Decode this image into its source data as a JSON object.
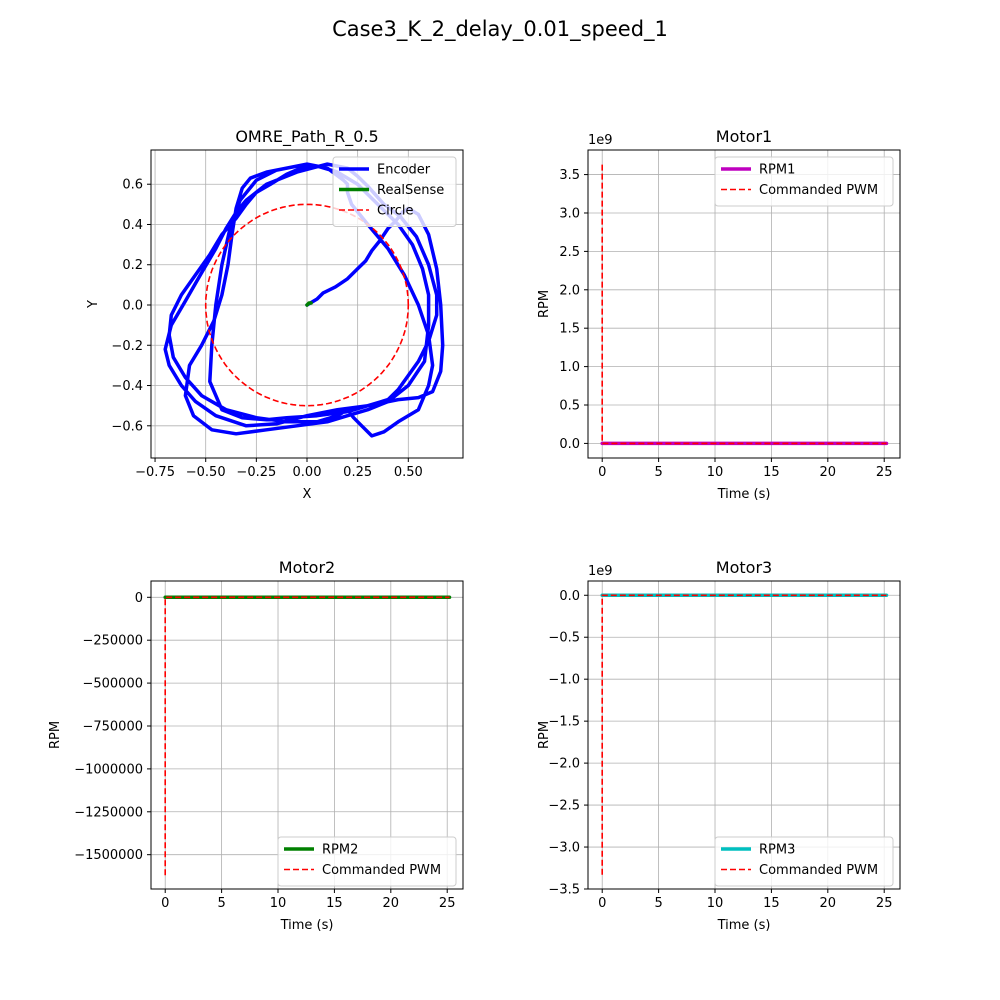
{
  "figure_title": "Case3_K_2_delay_0.01_speed_1",
  "colors": {
    "encoder": "#0000ff",
    "realsense": "#008000",
    "circle": "#ff0000",
    "rpm1": "#bf00bf",
    "rpm2": "#008000",
    "rpm3": "#00bfbf",
    "pwm": "#ff0000"
  },
  "chart_data": [
    {
      "id": "path",
      "type": "line",
      "title": "OMRE_Path_R_0.5",
      "xlabel": "X",
      "ylabel": "Y",
      "xlim": [
        -0.77,
        0.77
      ],
      "ylim": [
        -0.76,
        0.77
      ],
      "xticks": [
        -0.75,
        -0.5,
        -0.25,
        0.0,
        0.25,
        0.5
      ],
      "xticklabels": [
        "−0.75",
        "−0.50",
        "−0.25",
        "0.00",
        "0.25",
        "0.50"
      ],
      "yticks": [
        -0.6,
        -0.4,
        -0.2,
        0.0,
        0.2,
        0.4,
        0.6
      ],
      "yticklabels": [
        "−0.6",
        "−0.4",
        "−0.2",
        "0.0",
        "0.2",
        "0.4",
        "0.6"
      ],
      "grid": true,
      "legend": "top-right",
      "series": [
        {
          "name": "Encoder",
          "style": "solid",
          "color": "#0000ff",
          "x": [
            0.0,
            0.05,
            0.08,
            0.14,
            0.2,
            0.25,
            0.29,
            0.32,
            0.36,
            0.4,
            0.44,
            0.47,
            0.5,
            0.55,
            0.6,
            0.64,
            0.66,
            0.67,
            0.66,
            0.62,
            0.55,
            0.45,
            0.3,
            0.15,
            0.0,
            -0.15,
            -0.3,
            -0.45,
            -0.55,
            -0.62,
            -0.68,
            -0.7,
            -0.67,
            -0.6,
            -0.52,
            -0.45,
            -0.4,
            -0.35,
            -0.3,
            -0.2,
            -0.05,
            0.1,
            0.2,
            0.25,
            0.3,
            0.38,
            0.46,
            0.54,
            0.6,
            0.64,
            0.64,
            0.6,
            0.55,
            0.5,
            0.45,
            0.4,
            0.3,
            0.2,
            0.05,
            -0.1,
            -0.2,
            -0.32,
            -0.42,
            -0.48,
            -0.47,
            -0.45,
            -0.42,
            -0.38,
            -0.33,
            -0.25,
            -0.15,
            0.0,
            0.1,
            0.18,
            0.2,
            0.2,
            0.22,
            0.3,
            0.4,
            0.48,
            0.55,
            0.6,
            0.62,
            0.6,
            0.55,
            0.45,
            0.38,
            0.32,
            0.27,
            0.23,
            0.2,
            0.15,
            0.05,
            -0.1,
            -0.25,
            -0.4,
            -0.52,
            -0.6,
            -0.66,
            -0.68,
            -0.67,
            -0.62,
            -0.55,
            -0.48,
            -0.42,
            -0.35,
            -0.3,
            -0.25,
            -0.18,
            -0.1,
            -0.03,
            0.05,
            0.15,
            0.25,
            0.35,
            0.45,
            0.52,
            0.57,
            0.6,
            0.6,
            0.58,
            0.5,
            0.4,
            0.3,
            0.2,
            0.1,
            -0.05,
            -0.2,
            -0.35,
            -0.47,
            -0.56,
            -0.6,
            -0.58,
            -0.52,
            -0.46,
            -0.42,
            -0.39,
            -0.37,
            -0.35,
            -0.32,
            -0.28,
            -0.2,
            -0.15
          ],
          "y": [
            0.0,
            0.03,
            0.06,
            0.09,
            0.13,
            0.18,
            0.22,
            0.27,
            0.32,
            0.38,
            0.42,
            0.46,
            0.48,
            0.45,
            0.35,
            0.18,
            0.0,
            -0.2,
            -0.33,
            -0.43,
            -0.46,
            -0.47,
            -0.5,
            -0.52,
            -0.55,
            -0.59,
            -0.6,
            -0.55,
            -0.48,
            -0.4,
            -0.3,
            -0.22,
            -0.1,
            0.02,
            0.16,
            0.28,
            0.38,
            0.46,
            0.52,
            0.6,
            0.66,
            0.7,
            0.68,
            0.64,
            0.59,
            0.5,
            0.44,
            0.34,
            0.2,
            0.05,
            -0.05,
            -0.18,
            -0.28,
            -0.35,
            -0.42,
            -0.47,
            -0.5,
            -0.53,
            -0.55,
            -0.56,
            -0.57,
            -0.56,
            -0.52,
            -0.38,
            -0.2,
            0.0,
            0.2,
            0.38,
            0.52,
            0.62,
            0.67,
            0.7,
            0.68,
            0.62,
            0.6,
            0.56,
            0.5,
            0.4,
            0.28,
            0.15,
            0.0,
            -0.15,
            -0.3,
            -0.4,
            -0.52,
            -0.58,
            -0.63,
            -0.65,
            -0.6,
            -0.56,
            -0.52,
            -0.55,
            -0.58,
            -0.58,
            -0.56,
            -0.52,
            -0.45,
            -0.36,
            -0.26,
            -0.15,
            -0.05,
            0.05,
            0.15,
            0.25,
            0.35,
            0.43,
            0.5,
            0.56,
            0.6,
            0.65,
            0.68,
            0.69,
            0.66,
            0.6,
            0.5,
            0.4,
            0.3,
            0.18,
            0.05,
            -0.1,
            -0.28,
            -0.4,
            -0.48,
            -0.52,
            -0.55,
            -0.58,
            -0.6,
            -0.62,
            -0.64,
            -0.62,
            -0.55,
            -0.45,
            -0.3,
            -0.2,
            -0.08,
            0.05,
            0.2,
            0.35,
            0.48,
            0.58,
            0.63,
            0.66,
            0.67
          ]
        },
        {
          "name": "RealSense",
          "style": "solid",
          "color": "#008000",
          "x": [
            0.0,
            0.01,
            0.02
          ],
          "y": [
            0.0,
            0.01,
            0.01
          ]
        },
        {
          "name": "Circle",
          "style": "dashed",
          "color": "#ff0000",
          "parametric": "circle",
          "center": [
            0.0,
            0.0
          ],
          "radius": 0.5
        }
      ]
    },
    {
      "id": "motor1",
      "type": "line",
      "title": "Motor1",
      "xlabel": "Time (s)",
      "ylabel": "RPM",
      "offset_text": "1e9",
      "xlim": [
        -1.26,
        26.4
      ],
      "ylim": [
        -0.19,
        3.82
      ],
      "xticks": [
        0,
        5,
        10,
        15,
        20,
        25
      ],
      "xticklabels": [
        "0",
        "5",
        "10",
        "15",
        "20",
        "25"
      ],
      "yticks": [
        0.0,
        0.5,
        1.0,
        1.5,
        2.0,
        2.5,
        3.0,
        3.5
      ],
      "yticklabels": [
        "0.0",
        "0.5",
        "1.0",
        "1.5",
        "2.0",
        "2.5",
        "3.0",
        "3.5"
      ],
      "grid": true,
      "legend": "top-right",
      "series": [
        {
          "name": "RPM1",
          "style": "solid",
          "color": "#bf00bf",
          "x": [
            0,
            25.2
          ],
          "y": [
            0.0,
            0.0
          ]
        },
        {
          "name": "Commanded PWM",
          "style": "dashed",
          "color": "#ff0000",
          "x": [
            0,
            0,
            0.05,
            25.2
          ],
          "y": [
            3.63,
            0.0,
            0.0,
            0.0
          ]
        }
      ]
    },
    {
      "id": "motor2",
      "type": "line",
      "title": "Motor2",
      "xlabel": "Time (s)",
      "ylabel": "RPM",
      "xlim": [
        -1.26,
        26.4
      ],
      "ylim": [
        -1700000,
        95000
      ],
      "xticks": [
        0,
        5,
        10,
        15,
        20,
        25
      ],
      "xticklabels": [
        "0",
        "5",
        "10",
        "15",
        "20",
        "25"
      ],
      "yticks": [
        0,
        -250000,
        -500000,
        -750000,
        -1000000,
        -1250000,
        -1500000
      ],
      "yticklabels": [
        "0",
        "−250000",
        "−500000",
        "−750000",
        "−1000000",
        "−1250000",
        "−1500000"
      ],
      "grid": true,
      "legend": "bottom-right",
      "series": [
        {
          "name": "RPM2",
          "style": "solid",
          "color": "#008000",
          "x": [
            0,
            25.2
          ],
          "y": [
            0,
            0
          ]
        },
        {
          "name": "Commanded PWM",
          "style": "dashed",
          "color": "#ff0000",
          "x": [
            0,
            0,
            0.05,
            25.2
          ],
          "y": [
            -1620000,
            0,
            0,
            0
          ]
        }
      ]
    },
    {
      "id": "motor3",
      "type": "line",
      "title": "Motor3",
      "xlabel": "Time (s)",
      "ylabel": "RPM",
      "offset_text": "1e9",
      "xlim": [
        -1.26,
        26.4
      ],
      "ylim": [
        -3.5,
        0.17
      ],
      "xticks": [
        0,
        5,
        10,
        15,
        20,
        25
      ],
      "xticklabels": [
        "0",
        "5",
        "10",
        "15",
        "20",
        "25"
      ],
      "yticks": [
        0.0,
        -0.5,
        -1.0,
        -1.5,
        -2.0,
        -2.5,
        -3.0,
        -3.5
      ],
      "yticklabels": [
        "0.0",
        "−0.5",
        "−1.0",
        "−1.5",
        "−2.0",
        "−2.5",
        "−3.0",
        "−3.5"
      ],
      "grid": true,
      "legend": "bottom-right",
      "series": [
        {
          "name": "RPM3",
          "style": "solid",
          "color": "#00bfbf",
          "x": [
            0,
            25.2
          ],
          "y": [
            0.0,
            0.0
          ]
        },
        {
          "name": "Commanded PWM",
          "style": "dashed",
          "color": "#ff0000",
          "x": [
            0,
            0,
            0.05,
            25.2
          ],
          "y": [
            -3.33,
            0.0,
            0.0,
            0.0
          ]
        }
      ]
    }
  ]
}
